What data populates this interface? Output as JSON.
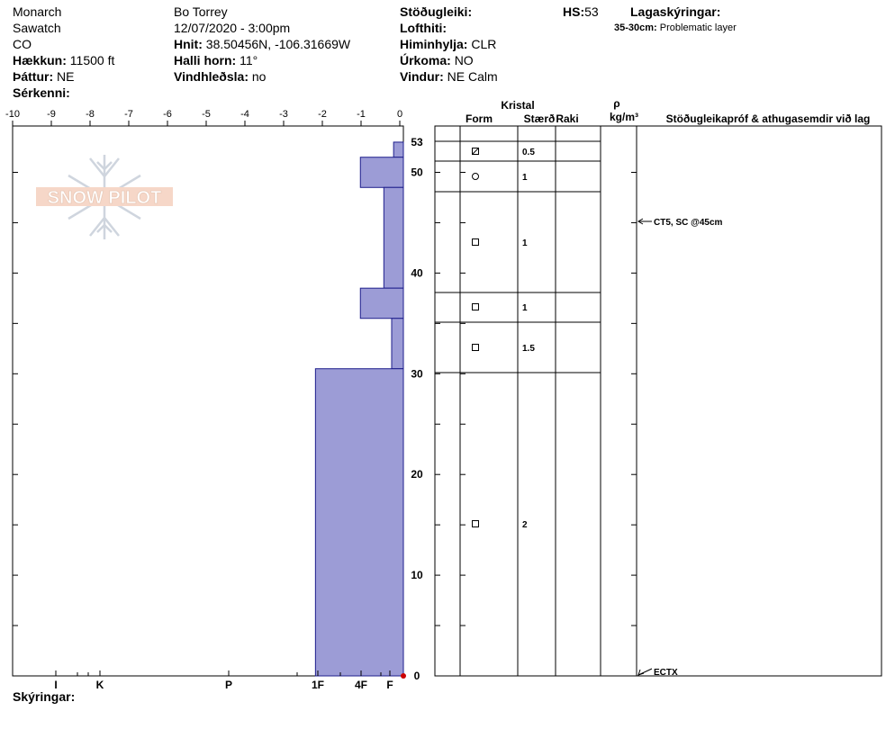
{
  "header": {
    "location": "Monarch",
    "range": "Sawatch",
    "state": "CO",
    "elevation_label": "Hækkun:",
    "elevation": "11500 ft",
    "aspect_label": "Þáttur:",
    "aspect": "NE",
    "features_label": "Sérkenni:",
    "observer": "Bo Torrey",
    "datetime": "12/07/2020 - 3:00pm",
    "coords_label": "Hnit:",
    "coords": "38.50456N, -106.31669W",
    "slope_label": "Halli horn:",
    "slope": "11°",
    "wind_loading_label": "Vindhleðsla:",
    "wind_loading": "no",
    "stability_label": "Stöðugleiki:",
    "air_temp_label": "Lofthiti:",
    "sky_label": "Himinhylja:",
    "sky": "CLR",
    "precip_label": "Úrkoma:",
    "precip": "NO",
    "wind_label": "Vindur:",
    "wind": "NE Calm",
    "hs_label": "HS:",
    "hs": "53",
    "layer_notes_label": "Lagaskýringar:",
    "layer_note_range": "35-30cm:",
    "layer_note_text": "Problematic layer",
    "comments_label": "Skýringar:"
  },
  "colors": {
    "hardness_fill": "#9c9cd6",
    "hardness_stroke": "#1e1e8c",
    "marker": "#cc0000"
  },
  "logo_text": "SNOW PILOT",
  "chart_data": {
    "type": "bar",
    "orientation": "horizontal",
    "hs": 53,
    "top_axis_ticks": [
      "-10",
      "-9",
      "-8",
      "-7",
      "-6",
      "-5",
      "-4",
      "-3",
      "-2",
      "-1",
      "0"
    ],
    "hardness_ticks": [
      "I",
      "K",
      "P",
      "1F",
      "4F",
      "F"
    ],
    "depth_ticks": [
      "0",
      "10",
      "20",
      "30",
      "40",
      "50",
      "53"
    ],
    "layers": [
      {
        "top": 53,
        "bottom": 51.5,
        "hardness": 0.25
      },
      {
        "top": 51.5,
        "bottom": 48.5,
        "hardness": 1.1
      },
      {
        "top": 48.5,
        "bottom": 38.5,
        "hardness": 0.5
      },
      {
        "top": 38.5,
        "bottom": 35.5,
        "hardness": 1.1
      },
      {
        "top": 35.5,
        "bottom": 30.5,
        "hardness": 0.3
      },
      {
        "top": 30.5,
        "bottom": 0,
        "hardness": 2.25
      }
    ],
    "column_headers": {
      "crystal": "Kristal",
      "form": "Form",
      "size": "Stærð",
      "moisture": "Raki",
      "rho": "ρ",
      "density_unit": "kg/m³",
      "tests": "Stöðugleikapróf & athugasemdir við lag"
    },
    "grain_rows": [
      {
        "top": 53,
        "bottom": 51.5,
        "form": "",
        "size": ""
      },
      {
        "top": 51.5,
        "bottom": 48.5,
        "form": "facets-rounding",
        "size": "0.5"
      },
      {
        "top": 48.5,
        "bottom": 38.5,
        "form": "rounded",
        "size": "1"
      },
      {
        "top": 38.5,
        "bottom": 35.5,
        "form": "facets",
        "size": "1"
      },
      {
        "top": 35.5,
        "bottom": 30.5,
        "form": "facets",
        "size": "1"
      },
      {
        "top": 30.5,
        "bottom": 0,
        "form": "facets",
        "size": "1.5"
      },
      {
        "top": 30.5,
        "bottom": 0,
        "form": "facets",
        "size": "2"
      }
    ],
    "tests": [
      {
        "depth": 45,
        "label": "CT5, SC @45cm"
      },
      {
        "depth": 0,
        "label": "ECTX"
      }
    ]
  }
}
